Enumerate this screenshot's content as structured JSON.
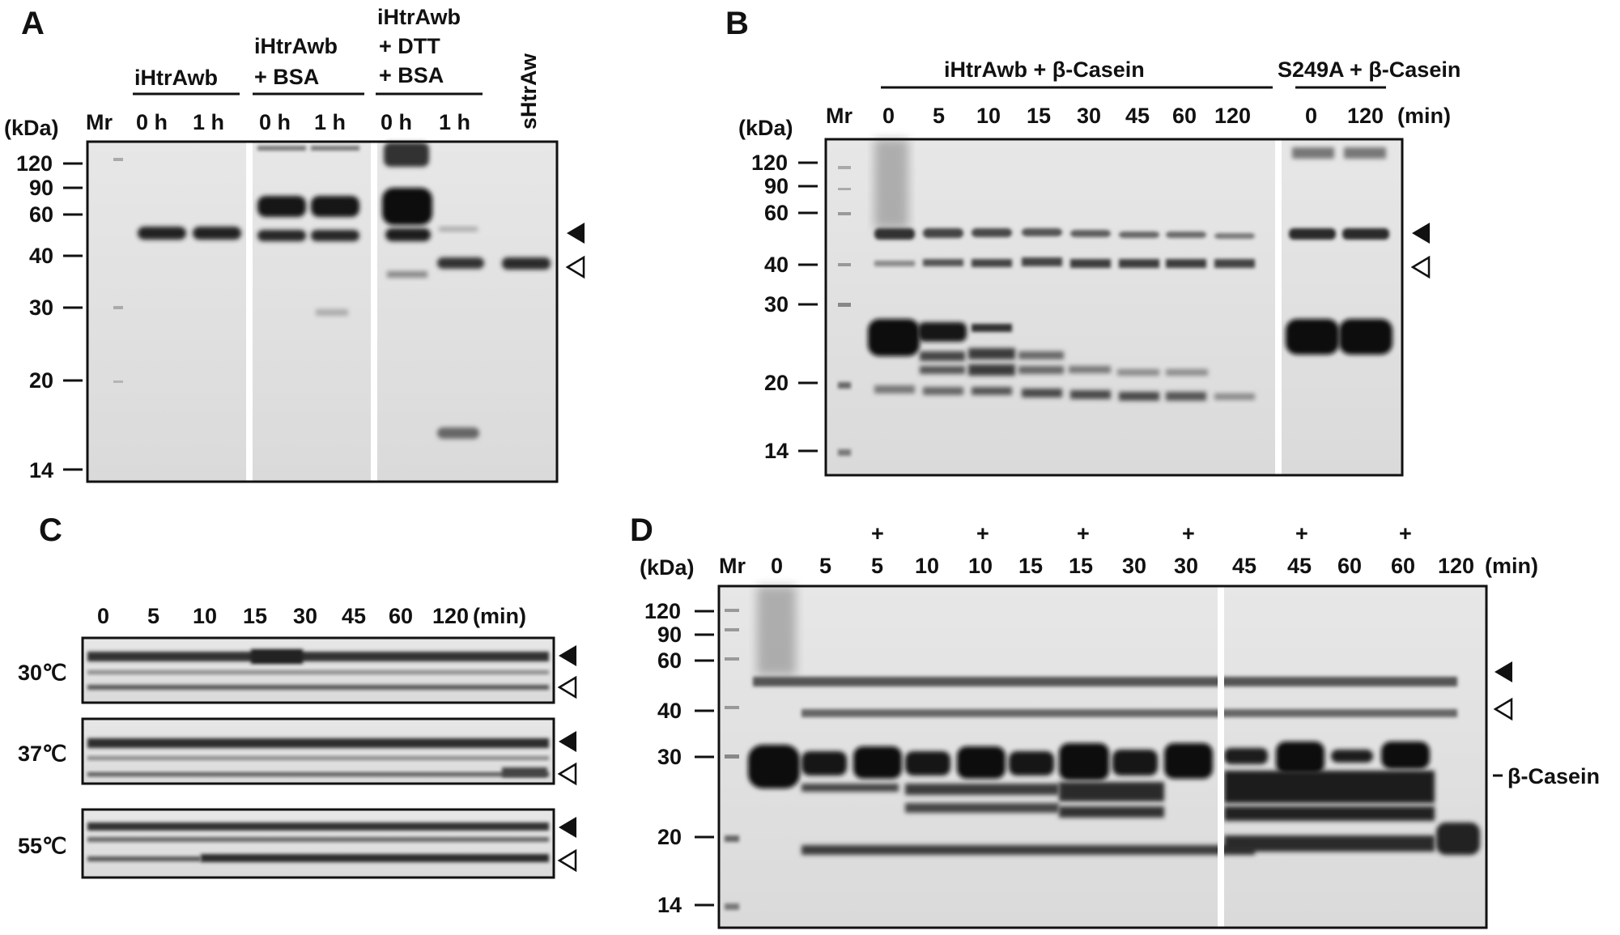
{
  "panels": {
    "A": {
      "letter": "A",
      "unit": "(kDa)",
      "marker_label": "Mr",
      "groups": [
        "iHtrAwb",
        "iHtrAwb",
        "+ BSA",
        "iHtrAwb",
        "+ DTT",
        "+ BSA"
      ],
      "lanes": [
        "0 h",
        "1 h",
        "0 h",
        "1 h",
        "0 h",
        "1 h",
        "sHtrAw"
      ],
      "kda": [
        "120",
        "90",
        "60",
        "40",
        "30",
        "20",
        "14"
      ]
    },
    "B": {
      "letter": "B",
      "unit": "(kDa)",
      "marker_label": "Mr",
      "groups": [
        "iHtrAwb + β-Casein",
        "S249A + β-Casein"
      ],
      "lanes": [
        "0",
        "5",
        "10",
        "15",
        "30",
        "45",
        "60",
        "120",
        "0",
        "120"
      ],
      "time_unit": "(min)",
      "kda": [
        "120",
        "90",
        "60",
        "40",
        "30",
        "20",
        "14"
      ]
    },
    "C": {
      "letter": "C",
      "lanes": [
        "0",
        "5",
        "10",
        "15",
        "30",
        "45",
        "60",
        "120"
      ],
      "time_unit": "(min)",
      "temperatures": [
        "30℃",
        "37℃",
        "55℃"
      ]
    },
    "D": {
      "letter": "D",
      "unit": "(kDa)",
      "marker_label": "Mr",
      "plus": "+",
      "lanes": [
        "0",
        "5",
        "5",
        "10",
        "10",
        "15",
        "15",
        "30",
        "30",
        "45",
        "45",
        "60",
        "60",
        "120"
      ],
      "time_unit": "(min)",
      "kda": [
        "120",
        "90",
        "60",
        "40",
        "30",
        "20",
        "14"
      ],
      "casein_label": "β-Casein"
    }
  }
}
